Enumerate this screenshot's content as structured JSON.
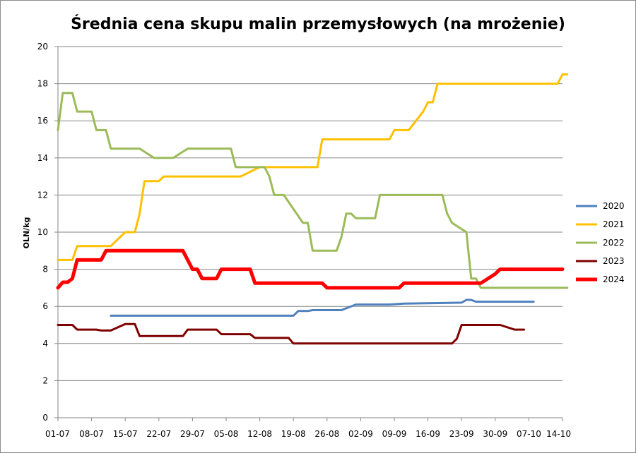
{
  "chart_data": {
    "type": "line",
    "title": "Średnia cena skupu malin przemysłowych (na mrożenie)",
    "xlabel": "",
    "ylabel": "OLN/kg",
    "ylim": [
      0,
      20
    ],
    "yticks": [
      0,
      2,
      4,
      6,
      8,
      10,
      12,
      14,
      16,
      18,
      20
    ],
    "xlim": [
      1,
      106
    ],
    "x_ticks": [
      {
        "day": 1,
        "label": "01-07"
      },
      {
        "day": 8,
        "label": "08-07"
      },
      {
        "day": 15,
        "label": "15-07"
      },
      {
        "day": 22,
        "label": "22-07"
      },
      {
        "day": 29,
        "label": "29-07"
      },
      {
        "day": 36,
        "label": "05-08"
      },
      {
        "day": 43,
        "label": "12-08"
      },
      {
        "day": 50,
        "label": "19-08"
      },
      {
        "day": 57,
        "label": "26-08"
      },
      {
        "day": 64,
        "label": "02-09"
      },
      {
        "day": 71,
        "label": "09-09"
      },
      {
        "day": 78,
        "label": "16-09"
      },
      {
        "day": 85,
        "label": "23-09"
      },
      {
        "day": 92,
        "label": "30-09"
      },
      {
        "day": 99,
        "label": "07-10"
      },
      {
        "day": 106,
        "label": "14-10"
      }
    ],
    "grid": "horizontal",
    "legend_position": "right",
    "series": [
      {
        "name": "2020",
        "color": "#4f81bd",
        "width": 3,
        "points": [
          [
            12,
            5.5
          ],
          [
            50,
            5.5
          ],
          [
            51,
            5.75
          ],
          [
            53,
            5.75
          ],
          [
            54,
            5.8
          ],
          [
            60,
            5.8
          ],
          [
            63,
            6.1
          ],
          [
            70,
            6.1
          ],
          [
            73,
            6.15
          ],
          [
            85,
            6.2
          ],
          [
            86,
            6.35
          ],
          [
            87,
            6.35
          ],
          [
            88,
            6.25
          ],
          [
            100,
            6.25
          ]
        ]
      },
      {
        "name": "2021",
        "color": "#ffc000",
        "width": 3,
        "points": [
          [
            1,
            8.5
          ],
          [
            4,
            8.5
          ],
          [
            5,
            9.25
          ],
          [
            12,
            9.25
          ],
          [
            15,
            10
          ],
          [
            17,
            10
          ],
          [
            18,
            11
          ],
          [
            19,
            12.75
          ],
          [
            22,
            12.75
          ],
          [
            23,
            13
          ],
          [
            39,
            13
          ],
          [
            43,
            13.5
          ],
          [
            55,
            13.5
          ],
          [
            56,
            15
          ],
          [
            70,
            15
          ],
          [
            71,
            15.5
          ],
          [
            74,
            15.5
          ],
          [
            77,
            16.5
          ],
          [
            78,
            17
          ],
          [
            79,
            17
          ],
          [
            80,
            18
          ],
          [
            105,
            18
          ],
          [
            106,
            18.5
          ],
          [
            107,
            18.5
          ]
        ]
      },
      {
        "name": "2022",
        "color": "#9bbb59",
        "width": 3,
        "points": [
          [
            1,
            15.5
          ],
          [
            2,
            17.5
          ],
          [
            4,
            17.5
          ],
          [
            5,
            16.5
          ],
          [
            8,
            16.5
          ],
          [
            9,
            15.5
          ],
          [
            11,
            15.5
          ],
          [
            12,
            14.5
          ],
          [
            18,
            14.5
          ],
          [
            21,
            14
          ],
          [
            25,
            14
          ],
          [
            28,
            14.5
          ],
          [
            37,
            14.5
          ],
          [
            38,
            13.5
          ],
          [
            44,
            13.5
          ],
          [
            45,
            13
          ],
          [
            46,
            12
          ],
          [
            48,
            12
          ],
          [
            52,
            10.5
          ],
          [
            53,
            10.5
          ],
          [
            54,
            9
          ],
          [
            59,
            9
          ],
          [
            60,
            9.75
          ],
          [
            61,
            11
          ],
          [
            62,
            11
          ],
          [
            63,
            10.75
          ],
          [
            67,
            10.75
          ],
          [
            68,
            12
          ],
          [
            81,
            12
          ],
          [
            82,
            11
          ],
          [
            83,
            10.5
          ],
          [
            86,
            10
          ],
          [
            87,
            7.5
          ],
          [
            88,
            7.5
          ],
          [
            89,
            7
          ],
          [
            107,
            7
          ]
        ]
      },
      {
        "name": "2023",
        "color": "#7f0000",
        "width": 3,
        "points": [
          [
            1,
            5
          ],
          [
            4,
            5
          ],
          [
            5,
            4.75
          ],
          [
            9,
            4.75
          ],
          [
            10,
            4.7
          ],
          [
            12,
            4.7
          ],
          [
            15,
            5.05
          ],
          [
            17,
            5.05
          ],
          [
            18,
            4.4
          ],
          [
            27,
            4.4
          ],
          [
            28,
            4.75
          ],
          [
            34,
            4.75
          ],
          [
            35,
            4.5
          ],
          [
            41,
            4.5
          ],
          [
            42,
            4.3
          ],
          [
            49,
            4.3
          ],
          [
            50,
            4
          ],
          [
            83,
            4
          ],
          [
            84,
            4.25
          ],
          [
            85,
            5
          ],
          [
            93,
            5
          ],
          [
            96,
            4.75
          ],
          [
            98,
            4.75
          ]
        ]
      },
      {
        "name": "2024",
        "color": "#ff0000",
        "width": 5,
        "points": [
          [
            1,
            7
          ],
          [
            2,
            7.3
          ],
          [
            3,
            7.3
          ],
          [
            4,
            7.5
          ],
          [
            5,
            8.5
          ],
          [
            10,
            8.5
          ],
          [
            11,
            9
          ],
          [
            27,
            9
          ],
          [
            29,
            8
          ],
          [
            30,
            8
          ],
          [
            31,
            7.5
          ],
          [
            34,
            7.5
          ],
          [
            35,
            8
          ],
          [
            41,
            8
          ],
          [
            42,
            7.25
          ],
          [
            56,
            7.25
          ],
          [
            57,
            7
          ],
          [
            72,
            7
          ],
          [
            73,
            7.25
          ],
          [
            89,
            7.25
          ],
          [
            92,
            7.75
          ],
          [
            93,
            8
          ],
          [
            106,
            8
          ]
        ]
      }
    ]
  }
}
